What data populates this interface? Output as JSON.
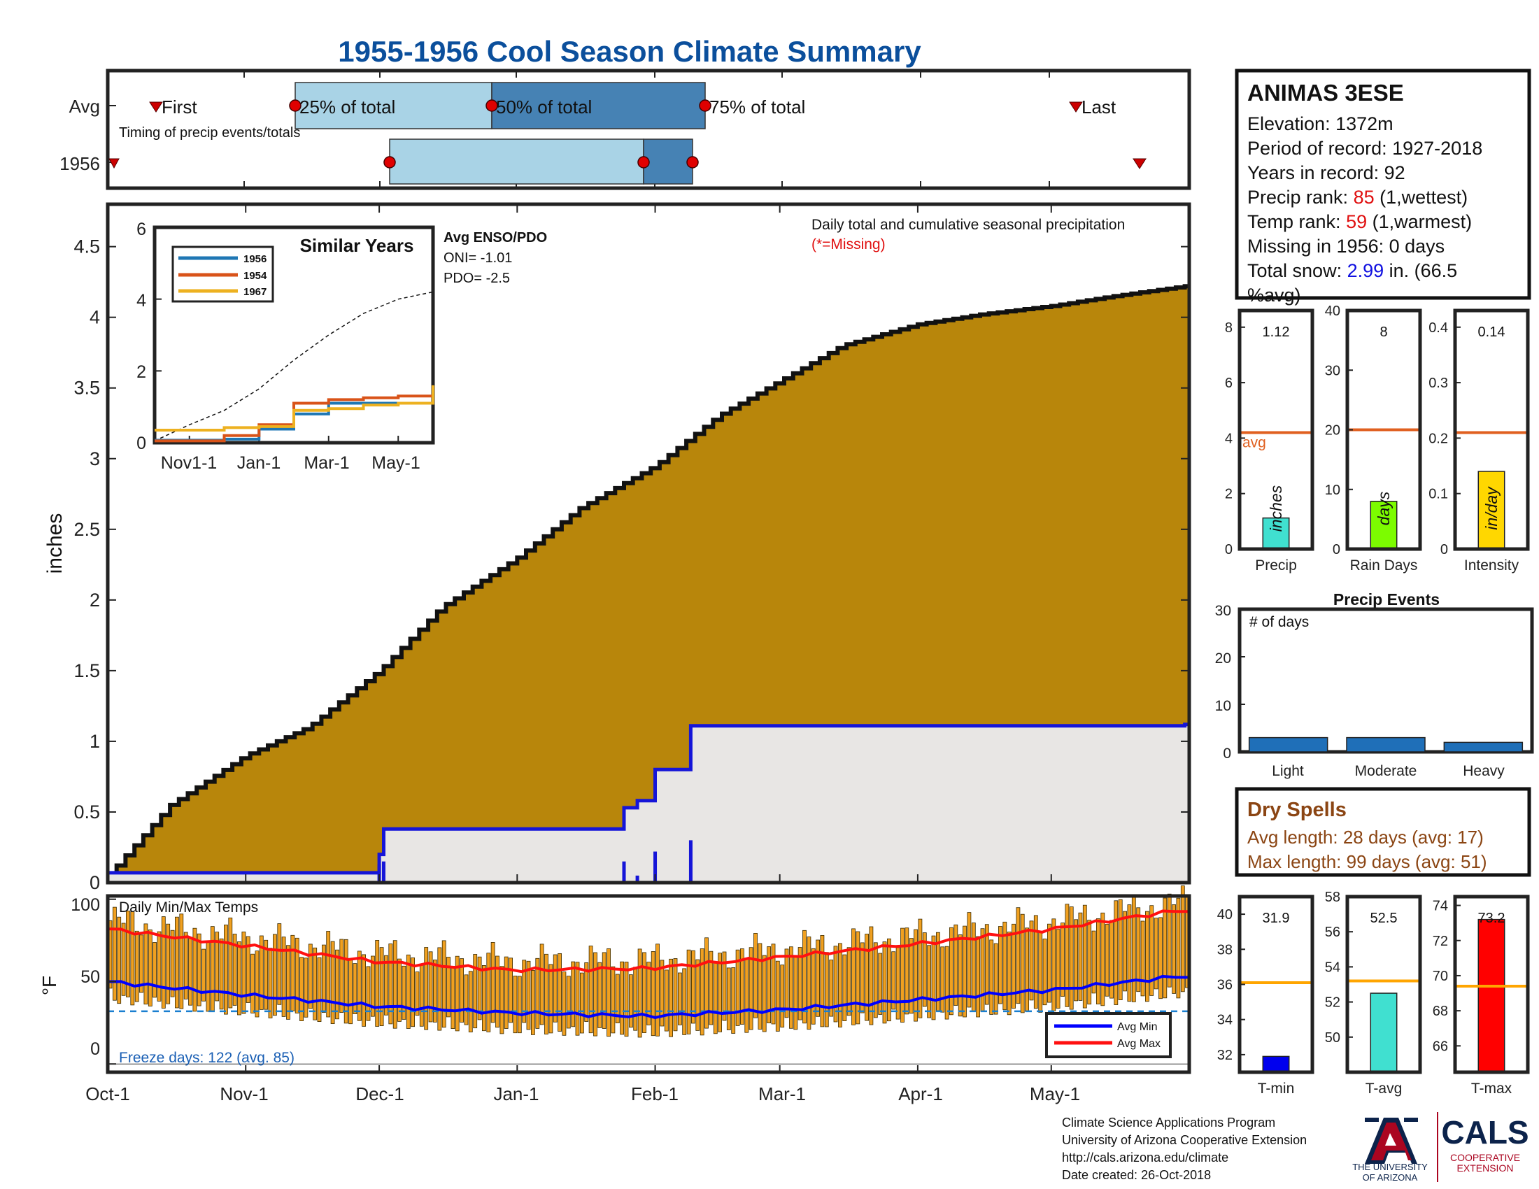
{
  "title": "1955-1956 Cool Season Climate Summary",
  "colors": {
    "title": "#0b4f9c",
    "cumulative_fill": "#b8860b",
    "missing_fill": "#e8e6e4",
    "year_line": "#1515d8",
    "timing_light": "#a9d3e6",
    "timing_dark": "#4682b4",
    "marker_red": "#e00000",
    "avg_orange": "#e06020",
    "temp_bars": "#f0a020",
    "avg_min": "#0000ff",
    "avg_max": "#ff1010",
    "red_text": "#e01010",
    "blue_text": "#1010e0",
    "dry_text": "#8b4513",
    "ua_navy": "#0c234b",
    "ua_red": "#ab0520"
  },
  "timing": {
    "rows": [
      "Avg",
      "1956"
    ],
    "annotation": "Timing of precip events/totals",
    "labels": {
      "first": "First",
      "p25": "25% of total",
      "p50": "50% of total",
      "p75": "75% of total",
      "last": "Last"
    }
  },
  "main": {
    "ylabel": "inches",
    "annotation": "Daily total and cumulative seasonal precipitation",
    "missing_note": "(*=Missing)",
    "y_ticks": [
      "0",
      "0.5",
      "1",
      "1.5",
      "2",
      "2.5",
      "3",
      "3.5",
      "4",
      "4.5"
    ],
    "x_ticks": [
      "Oct-1",
      "Nov-1",
      "Dec-1",
      "Jan-1",
      "Feb-1",
      "Mar-1",
      "Apr-1",
      "May-1"
    ]
  },
  "inset": {
    "title": "Similar Years",
    "legend": [
      {
        "name": "1956",
        "color": "#1f77b4"
      },
      {
        "name": "1954",
        "color": "#d95319"
      },
      {
        "name": "1967",
        "color": "#edb120"
      }
    ],
    "y_ticks": [
      "0",
      "2",
      "4",
      "6"
    ],
    "x_ticks": [
      "Nov1-1",
      "Jan-1",
      "Mar-1",
      "May-1"
    ],
    "enso_title": "Avg ENSO/PDO",
    "oni": "ONI= -1.01",
    "pdo": "PDO= -2.5"
  },
  "station": {
    "name": "ANIMAS 3ESE",
    "lines": [
      "Elevation: 1372m",
      "Period of record: 1927-2018",
      "Years in record: 92"
    ],
    "precip_rank_prefix": "Precip rank: ",
    "precip_rank": "85",
    "precip_rank_suffix": " (1,wettest)",
    "temp_rank_prefix": "Temp rank: ",
    "temp_rank": "59",
    "temp_rank_suffix": " (1,warmest)",
    "missing": "Missing in 1956: 0 days",
    "snow_prefix": "Total snow: ",
    "snow_value": "2.99",
    "snow_suffix": " in. (66.5",
    "snow_suffix2": "%avg)"
  },
  "summary_bars": [
    {
      "label": "Precip",
      "value_text": "1.12",
      "unit": "inches",
      "y_ticks": [
        "0",
        "2",
        "4",
        "6",
        "8"
      ],
      "avg_label": "avg",
      "color": "#40e0d0"
    },
    {
      "label": "Rain Days",
      "value_text": "8",
      "unit": "days",
      "y_ticks": [
        "0",
        "10",
        "20",
        "30",
        "40"
      ],
      "color": "#7cfc00"
    },
    {
      "label": "Intensity",
      "value_text": "0.14",
      "unit": "in/day",
      "y_ticks": [
        "0",
        "0.1",
        "0.2",
        "0.3",
        "0.4"
      ],
      "color": "#ffd700"
    }
  ],
  "events": {
    "title": "Precip Events",
    "annotation": "# of days",
    "y_ticks": [
      "0",
      "10",
      "20",
      "30"
    ],
    "categories": [
      "Light",
      "Moderate",
      "Heavy"
    ]
  },
  "dry_spells": {
    "title": "Dry Spells",
    "avg_line": "Avg length: 28 days (avg: 17)",
    "max_line": "Max length: 99 days (avg: 51)"
  },
  "temps": {
    "annotation": "Daily Min/Max Temps",
    "ylabel": "°F",
    "y_ticks": [
      "0",
      "50",
      "100"
    ],
    "freeze": "Freeze days: 122 (avg. 85)",
    "legend": [
      "Avg Min",
      "Avg Max"
    ]
  },
  "temp_bars": [
    {
      "label": "T-min",
      "value_text": "31.9",
      "y_ticks": [
        "32",
        "34",
        "36",
        "38",
        "40"
      ],
      "color": "#0000ee"
    },
    {
      "label": "T-avg",
      "value_text": "52.5",
      "y_ticks": [
        "50",
        "52",
        "54",
        "56",
        "58"
      ],
      "color": "#40e0d0"
    },
    {
      "label": "T-max",
      "value_text": "73.2",
      "y_ticks": [
        "66",
        "68",
        "70",
        "72",
        "74"
      ],
      "color": "#ff0000"
    }
  ],
  "credits": [
    "Climate Science Applications Program",
    "University of Arizona Cooperative Extension",
    "http://cals.arizona.edu/climate",
    " Date created: 26-Oct-2018"
  ],
  "logo": {
    "ua_line1": "THE UNIVERSITY",
    "ua_line2": "OF ARIZONA",
    "cals": "CALS",
    "coop1": "COOPERATIVE",
    "coop2": "EXTENSION"
  },
  "chart_data": [
    {
      "type": "area",
      "title": "Daily total and cumulative seasonal precipitation",
      "ylabel": "inches",
      "ylim": [
        0,
        4.8
      ],
      "x_dates": [
        "Oct-1",
        "Nov-1",
        "Dec-1",
        "Jan-1",
        "Feb-1",
        "Mar-1",
        "Apr-1",
        "May-1",
        "May-31"
      ],
      "series": [
        {
          "name": "Avg",
          "kind": "area",
          "x": [
            "Oct-1",
            "Oct-15",
            "Nov-1",
            "Nov-15",
            "Dec-1",
            "Dec-15",
            "Jan-1",
            "Jan-15",
            "Feb-1",
            "Feb-15",
            "Mar-1",
            "Mar-15",
            "Apr-1",
            "Apr-15",
            "May-1",
            "May-15",
            "May-31"
          ],
          "values": [
            0.05,
            0.55,
            0.9,
            1.1,
            1.5,
            1.95,
            2.3,
            2.65,
            2.95,
            3.3,
            3.55,
            3.8,
            3.95,
            4.02,
            4.08,
            4.15,
            4.22
          ]
        },
        {
          "name": "1956",
          "kind": "step",
          "x": [
            "Oct-1",
            "Dec-1",
            "Dec-2",
            "Jan-25",
            "Jan-28",
            "Feb-1",
            "Feb-9",
            "May-31"
          ],
          "values": [
            0.07,
            0.2,
            0.38,
            0.53,
            0.58,
            0.8,
            1.11,
            1.12
          ]
        },
        {
          "name": "daily",
          "kind": "bar",
          "x": [
            "Dec-1",
            "Dec-2",
            "Jan-25",
            "Jan-28",
            "Feb-1",
            "Feb-9"
          ],
          "values": [
            0.13,
            0.15,
            0.15,
            0.05,
            0.22,
            0.3
          ]
        }
      ]
    },
    {
      "type": "line",
      "title": "Similar Years",
      "ylim": [
        0,
        6
      ],
      "x_months": [
        0,
        1,
        2,
        3,
        4,
        5,
        6,
        7,
        8
      ],
      "series": [
        {
          "name": "Avg",
          "values": [
            0.05,
            0.5,
            0.9,
            1.5,
            2.3,
            3.0,
            3.6,
            4.0,
            4.2
          ]
        },
        {
          "name": "1956",
          "values": [
            0.07,
            0.07,
            0.1,
            0.38,
            0.8,
            1.1,
            1.1,
            1.1,
            1.12
          ]
        },
        {
          "name": "1954",
          "values": [
            0.05,
            0.05,
            0.2,
            0.5,
            1.1,
            1.2,
            1.25,
            1.3,
            1.4
          ]
        },
        {
          "name": "1967",
          "values": [
            0.35,
            0.35,
            0.42,
            0.45,
            0.9,
            0.95,
            1.05,
            1.1,
            1.6
          ]
        }
      ]
    },
    {
      "type": "bar",
      "title": "Precip",
      "categories": [
        "Precip"
      ],
      "values": [
        1.12
      ],
      "avg": 4.2,
      "ylim": [
        0,
        8.6
      ]
    },
    {
      "type": "bar",
      "title": "Rain Days",
      "categories": [
        "Rain Days"
      ],
      "values": [
        8
      ],
      "avg": 20,
      "ylim": [
        0,
        40
      ]
    },
    {
      "type": "bar",
      "title": "Intensity",
      "categories": [
        "Intensity"
      ],
      "values": [
        0.14
      ],
      "avg": 0.21,
      "ylim": [
        0,
        0.43
      ]
    },
    {
      "type": "bar",
      "title": "Precip Events",
      "categories": [
        "Light",
        "Moderate",
        "Heavy"
      ],
      "values": [
        3,
        3,
        2
      ],
      "ylim": [
        0,
        30
      ]
    },
    {
      "type": "bar",
      "title": "Daily Min/Max Temps",
      "ylabel": "°F",
      "ylim": [
        -5,
        102
      ],
      "freeze_line": 32,
      "series": [
        {
          "name": "Avg Min",
          "x_month": [
            0,
            1,
            2,
            3,
            4,
            5,
            6,
            7,
            7.9
          ],
          "values": [
            50,
            42,
            35,
            31,
            29,
            33,
            39,
            45,
            53
          ]
        },
        {
          "name": "Avg Max",
          "x_month": [
            0,
            1,
            2,
            3,
            4,
            5,
            6,
            7,
            7.9
          ],
          "values": [
            82,
            72,
            62,
            57,
            58,
            65,
            73,
            82,
            93
          ]
        }
      ]
    },
    {
      "type": "bar",
      "title": "T-min",
      "categories": [
        "T-min"
      ],
      "values": [
        31.9
      ],
      "avg": 36.1,
      "ylim": [
        31,
        41
      ]
    },
    {
      "type": "bar",
      "title": "T-avg",
      "categories": [
        "T-avg"
      ],
      "values": [
        52.5
      ],
      "avg": 53.2,
      "ylim": [
        48,
        58
      ]
    },
    {
      "type": "bar",
      "title": "T-max",
      "categories": [
        "T-max"
      ],
      "values": [
        73.2
      ],
      "avg": 69.4,
      "ylim": [
        64.5,
        74.5
      ]
    }
  ]
}
